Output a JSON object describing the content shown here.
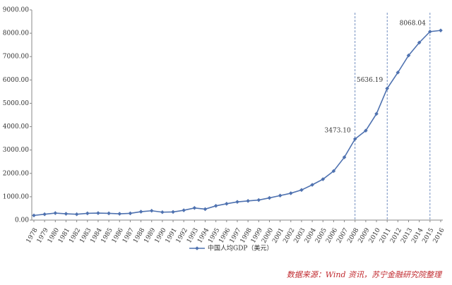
{
  "chart_data": {
    "type": "line",
    "categories": [
      "1978",
      "1979",
      "1980",
      "1981",
      "1982",
      "1983",
      "1984",
      "1985",
      "1986",
      "1987",
      "1988",
      "1989",
      "1990",
      "1991",
      "1992",
      "1993",
      "1994",
      "1995",
      "1996",
      "1997",
      "1998",
      "1999",
      "2000",
      "2001",
      "2002",
      "2003",
      "2004",
      "2005",
      "2006",
      "2007",
      "2008",
      "2009",
      "2010",
      "2011",
      "2012",
      "2013",
      "2014",
      "2015",
      "2016"
    ],
    "series": [
      {
        "name": "中国人均GDP（美元）",
        "color": "#4f72b0",
        "values": [
          200,
          250,
          300,
          270,
          250,
          290,
          300,
          290,
          270,
          290,
          360,
          400,
          340,
          350,
          420,
          520,
          470,
          610,
          700,
          780,
          820,
          860,
          950,
          1050,
          1150,
          1290,
          1510,
          1750,
          2100,
          2690,
          3473.1,
          3830,
          4550,
          5636.19,
          6320,
          7050,
          7600,
          8068.04,
          8120
        ],
        "value_labels": [
          null,
          null,
          null,
          null,
          null,
          null,
          null,
          null,
          null,
          null,
          null,
          null,
          null,
          null,
          null,
          null,
          null,
          null,
          null,
          null,
          null,
          null,
          null,
          null,
          null,
          null,
          null,
          null,
          null,
          null,
          "3473.10",
          null,
          null,
          "5636.19",
          null,
          null,
          null,
          "8068.04",
          null
        ]
      }
    ],
    "ylim": [
      0,
      9000
    ],
    "yticks": [
      {
        "value": 0,
        "label": "0.00"
      },
      {
        "value": 1000,
        "label": "1000.00"
      },
      {
        "value": 2000,
        "label": "2000.00"
      },
      {
        "value": 3000,
        "label": "3000.00"
      },
      {
        "value": 4000,
        "label": "4000.00"
      },
      {
        "value": 5000,
        "label": "5000.00"
      },
      {
        "value": 6000,
        "label": "6000.00"
      },
      {
        "value": 7000,
        "label": "7000.00"
      },
      {
        "value": 8000,
        "label": "8000.00"
      },
      {
        "value": 9000,
        "label": "9000.00"
      }
    ],
    "legend": "bottom",
    "source": "数据来源：Wind 资讯，苏宁金融研究院整理"
  }
}
